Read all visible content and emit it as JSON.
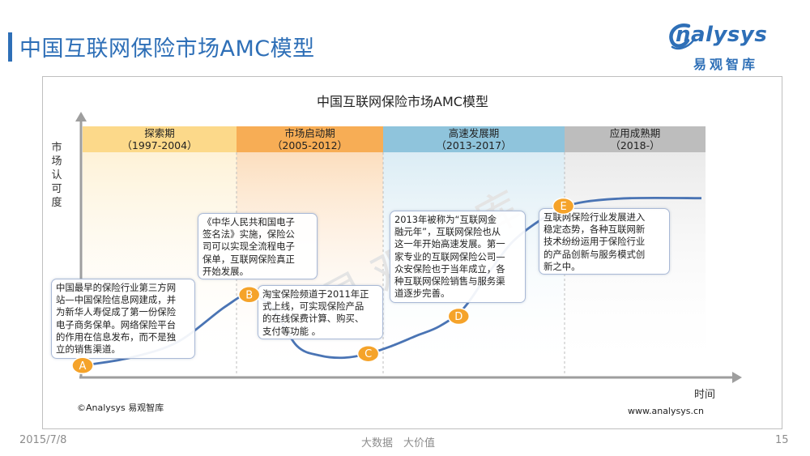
{
  "page": {
    "title": "中国互联网保险市场AMC模型",
    "date": "2015/7/8",
    "slogan": "大数据　大价值",
    "page_number": "15"
  },
  "logo": {
    "wordmark": "nalysys",
    "cn": "易观智库"
  },
  "watermark": "易 观 智 库",
  "colors": {
    "brand_blue": "#2e6fb7",
    "curve": "#4a74b4",
    "marker": "#f5a32a",
    "phase1": "#fcd98a",
    "phase2": "#f7ad55",
    "phase3": "#8fc4dc",
    "phase4": "#bdbdbd"
  },
  "chart_data": {
    "type": "line",
    "title": "中国互联网保险市场AMC模型",
    "ylabel": "市场认可度",
    "xlabel": "时间",
    "source": "©Analysys 易观智库",
    "website": "www.analysys.cn",
    "phases": [
      {
        "name": "探索期",
        "period": "（1997-2004）"
      },
      {
        "name": "市场启动期",
        "period": "（2005-2012）"
      },
      {
        "name": "高速发展期",
        "period": "（2013-2017）"
      },
      {
        "name": "应用成熟期",
        "period": "（2018-）"
      }
    ],
    "curve": {
      "x": [
        1997,
        1999,
        2001,
        2003,
        2004,
        2005,
        2006,
        2007,
        2008,
        2009,
        2010,
        2011,
        2012,
        2013,
        2014,
        2015,
        2016,
        2017,
        2018,
        2020,
        2023
      ],
      "y": [
        4,
        8,
        16,
        34,
        40,
        33,
        14,
        9,
        8,
        10,
        14,
        19,
        24,
        33,
        50,
        66,
        76,
        83,
        87,
        89,
        89
      ]
    },
    "milestones": [
      {
        "label": "A",
        "x": 1997,
        "y": 4,
        "text": [
          "中国最早的保险行业第三方网",
          "站—中国保险信息网建成，并",
          "为新华人寿促成了第一份保险",
          "电子商务保单。网络保险平台",
          "的作用在信息发布，而不是独",
          "立的销售渠道。"
        ]
      },
      {
        "label": "B",
        "x": 2004,
        "y": 40,
        "text": [
          "《中华人民共和国电子",
          "签名法》实施，保险公",
          "司可以实现全流程电子",
          "保单，互联网保险真正",
          "开始发展。"
        ]
      },
      {
        "label": "C",
        "x": 2009,
        "y": 10,
        "text": [
          "淘宝保险频道于2011年正",
          "式上线，可实现保险产品",
          "的在线保费计算、购买、",
          "支付等功能 。"
        ]
      },
      {
        "label": "D",
        "x": 2012.8,
        "y": 29,
        "text": [
          "2013年被称为“互联网金",
          "融元年”，互联网保险也从",
          "这一年开始高速发展。第一",
          "家专业的互联网保险公司—",
          "众安保险也于当年成立，各",
          "种互联网保险销售与服务渠",
          "道逐步完善。"
        ]
      },
      {
        "label": "E",
        "x": 2017.2,
        "y": 85,
        "text": [
          "互联网保险行业发展进入",
          "稳定态势，各种互联网新",
          "技术纷纷运用于保险行业",
          "的产品创新与服务模式创",
          "新之中。"
        ]
      }
    ]
  }
}
